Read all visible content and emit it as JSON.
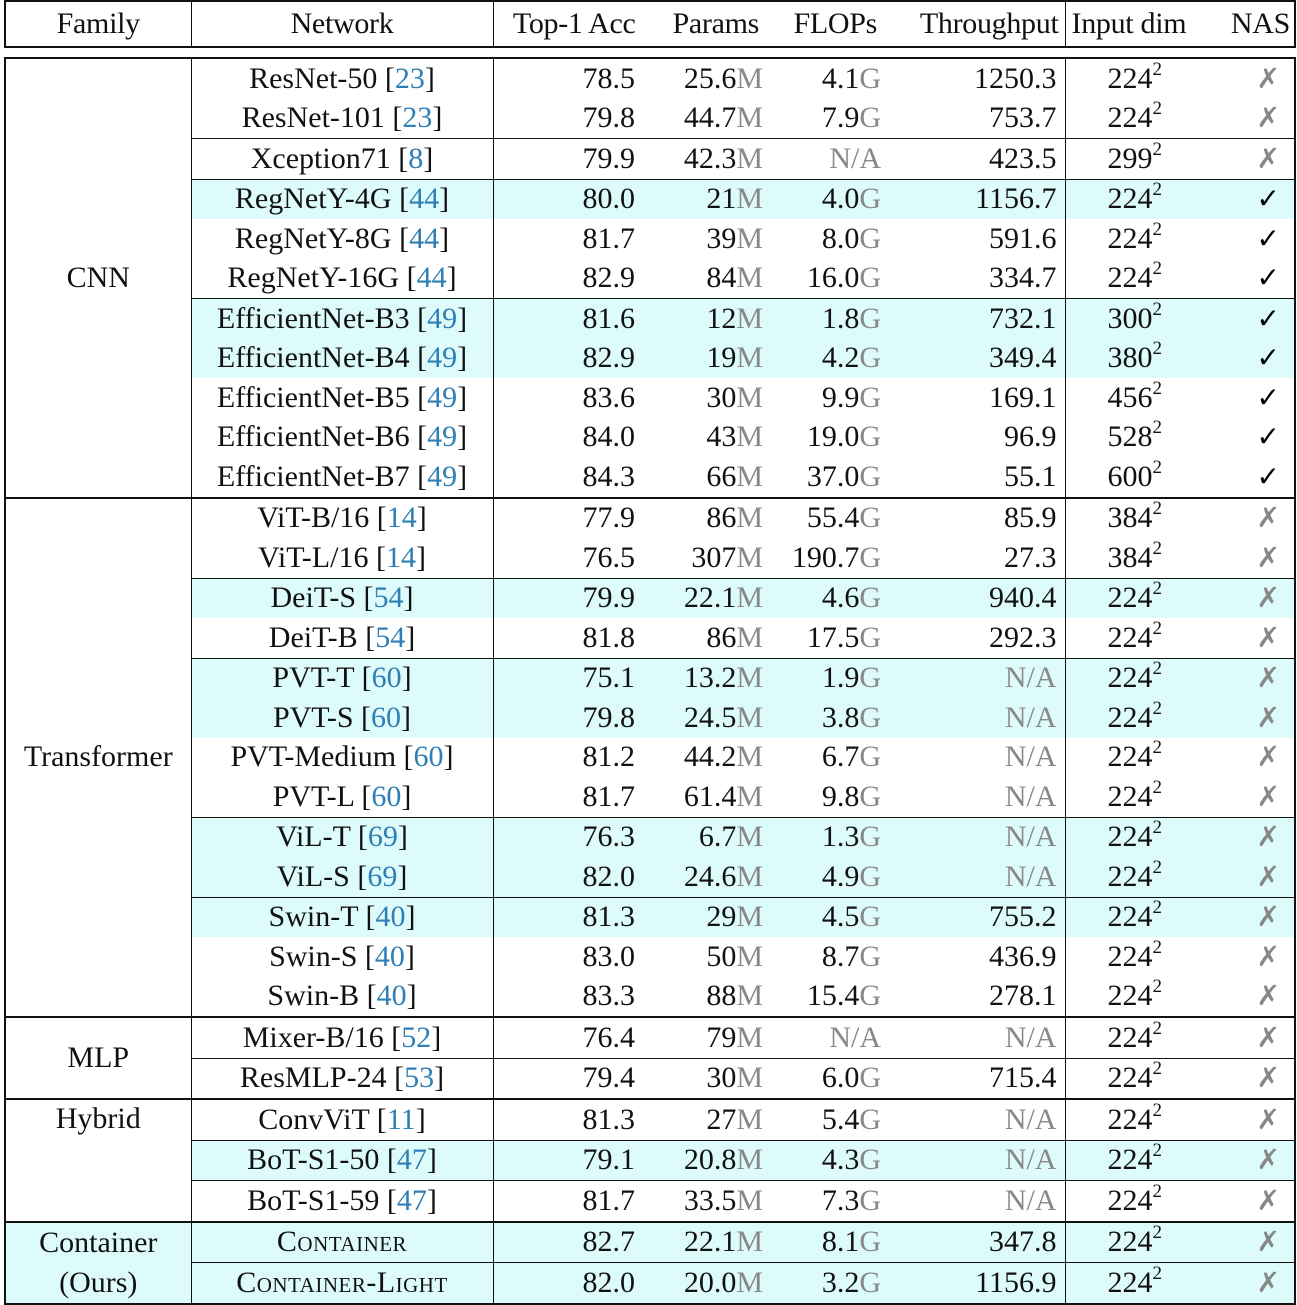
{
  "header": {
    "family": "Family",
    "network": "Network",
    "top1": "Top-1 Acc",
    "params": "Params",
    "flops": "FLOPs",
    "throughput": "Throughput",
    "input_dim": "Input dim",
    "nas": "NAS"
  },
  "colors": {
    "highlight": "#ddfbfb",
    "citation": "#2f7fb5",
    "unit": "#888888"
  },
  "icons": {
    "yes": "checkmark-icon",
    "no": "cross-icon"
  },
  "groups": [
    {
      "family": "CNN",
      "family_highlight": false,
      "rows": [
        {
          "name": "ResNet-50",
          "cite": "23",
          "acc": "78.5",
          "params": "25.6",
          "flops": "4.1",
          "thr": "1250.3",
          "dim": "224",
          "nas": false,
          "hl": false,
          "sep": false
        },
        {
          "name": "ResNet-101",
          "cite": "23",
          "acc": "79.8",
          "params": "44.7",
          "flops": "7.9",
          "thr": "753.7",
          "dim": "224",
          "nas": false,
          "hl": false,
          "sep": false
        },
        {
          "name": "Xception71",
          "cite": "8",
          "acc": "79.9",
          "params": "42.3",
          "flops": "N/A",
          "thr": "423.5",
          "dim": "299",
          "nas": false,
          "hl": false,
          "sep": true
        },
        {
          "name": "RegNetY-4G",
          "cite": "44",
          "acc": "80.0",
          "params": "21",
          "flops": "4.0",
          "thr": "1156.7",
          "dim": "224",
          "nas": true,
          "hl": true,
          "sep": true
        },
        {
          "name": "RegNetY-8G",
          "cite": "44",
          "acc": "81.7",
          "params": "39",
          "flops": "8.0",
          "thr": "591.6",
          "dim": "224",
          "nas": true,
          "hl": false,
          "sep": false
        },
        {
          "name": "RegNetY-16G",
          "cite": "44",
          "acc": "82.9",
          "params": "84",
          "flops": "16.0",
          "thr": "334.7",
          "dim": "224",
          "nas": true,
          "hl": false,
          "sep": false
        },
        {
          "name": "EfficientNet-B3",
          "cite": "49",
          "acc": "81.6",
          "params": "12",
          "flops": "1.8",
          "thr": "732.1",
          "dim": "300",
          "nas": true,
          "hl": true,
          "sep": true
        },
        {
          "name": "EfficientNet-B4",
          "cite": "49",
          "acc": "82.9",
          "params": "19",
          "flops": "4.2",
          "thr": "349.4",
          "dim": "380",
          "nas": true,
          "hl": true,
          "sep": false
        },
        {
          "name": "EfficientNet-B5",
          "cite": "49",
          "acc": "83.6",
          "params": "30",
          "flops": "9.9",
          "thr": "169.1",
          "dim": "456",
          "nas": true,
          "hl": false,
          "sep": false
        },
        {
          "name": "EfficientNet-B6",
          "cite": "49",
          "acc": "84.0",
          "params": "43",
          "flops": "19.0",
          "thr": "96.9",
          "dim": "528",
          "nas": true,
          "hl": false,
          "sep": false
        },
        {
          "name": "EfficientNet-B7",
          "cite": "49",
          "acc": "84.3",
          "params": "66",
          "flops": "37.0",
          "thr": "55.1",
          "dim": "600",
          "nas": true,
          "hl": false,
          "sep": false
        }
      ]
    },
    {
      "family": "Transformer",
      "family_highlight": false,
      "rows": [
        {
          "name": "ViT-B/16",
          "cite": "14",
          "acc": "77.9",
          "params": "86",
          "flops": "55.4",
          "thr": "85.9",
          "dim": "384",
          "nas": false,
          "hl": false,
          "sep": false
        },
        {
          "name": "ViT-L/16",
          "cite": "14",
          "acc": "76.5",
          "params": "307",
          "flops": "190.7",
          "thr": "27.3",
          "dim": "384",
          "nas": false,
          "hl": false,
          "sep": false
        },
        {
          "name": "DeiT-S",
          "cite": "54",
          "acc": "79.9",
          "params": "22.1",
          "flops": "4.6",
          "thr": "940.4",
          "dim": "224",
          "nas": false,
          "hl": true,
          "sep": true
        },
        {
          "name": "DeiT-B",
          "cite": "54",
          "acc": "81.8",
          "params": "86",
          "flops": "17.5",
          "thr": "292.3",
          "dim": "224",
          "nas": false,
          "hl": false,
          "sep": false
        },
        {
          "name": "PVT-T",
          "cite": "60",
          "acc": "75.1",
          "params": "13.2",
          "flops": "1.9",
          "thr": "N/A",
          "dim": "224",
          "nas": false,
          "hl": true,
          "sep": true
        },
        {
          "name": "PVT-S",
          "cite": "60",
          "acc": "79.8",
          "params": "24.5",
          "flops": "3.8",
          "thr": "N/A",
          "dim": "224",
          "nas": false,
          "hl": true,
          "sep": false
        },
        {
          "name": "PVT-Medium",
          "cite": "60",
          "acc": "81.2",
          "params": "44.2",
          "flops": "6.7",
          "thr": "N/A",
          "dim": "224",
          "nas": false,
          "hl": false,
          "sep": false
        },
        {
          "name": "PVT-L",
          "cite": "60",
          "acc": "81.7",
          "params": "61.4",
          "flops": "9.8",
          "thr": "N/A",
          "dim": "224",
          "nas": false,
          "hl": false,
          "sep": false
        },
        {
          "name": "ViL-T",
          "cite": "69",
          "acc": "76.3",
          "params": "6.7",
          "flops": "1.3",
          "thr": "N/A",
          "dim": "224",
          "nas": false,
          "hl": true,
          "sep": true
        },
        {
          "name": "ViL-S",
          "cite": "69",
          "acc": "82.0",
          "params": "24.6",
          "flops": "4.9",
          "thr": "N/A",
          "dim": "224",
          "nas": false,
          "hl": true,
          "sep": false
        },
        {
          "name": "Swin-T",
          "cite": "40",
          "acc": "81.3",
          "params": "29",
          "flops": "4.5",
          "thr": "755.2",
          "dim": "224",
          "nas": false,
          "hl": true,
          "sep": true
        },
        {
          "name": "Swin-S",
          "cite": "40",
          "acc": "83.0",
          "params": "50",
          "flops": "8.7",
          "thr": "436.9",
          "dim": "224",
          "nas": false,
          "hl": false,
          "sep": false
        },
        {
          "name": "Swin-B",
          "cite": "40",
          "acc": "83.3",
          "params": "88",
          "flops": "15.4",
          "thr": "278.1",
          "dim": "224",
          "nas": false,
          "hl": false,
          "sep": false
        }
      ]
    },
    {
      "family": "MLP",
      "family_highlight": false,
      "rows": [
        {
          "name": "Mixer-B/16",
          "cite": "52",
          "acc": "76.4",
          "params": "79",
          "flops": "N/A",
          "thr": "N/A",
          "dim": "224",
          "nas": false,
          "hl": false,
          "sep": false
        },
        {
          "name": "ResMLP-24",
          "cite": "53",
          "acc": "79.4",
          "params": "30",
          "flops": "6.0",
          "thr": "715.4",
          "dim": "224",
          "nas": false,
          "hl": false,
          "sep": true
        }
      ]
    },
    {
      "family": "Hybrid",
      "family_highlight": false,
      "rows": [
        {
          "name": "ConvViT",
          "cite": "11",
          "acc": "81.3",
          "params": "27",
          "flops": "5.4",
          "thr": "N/A",
          "dim": "224",
          "nas": false,
          "hl": false,
          "sep": false
        },
        {
          "name": "BoT-S1-50",
          "cite": "47",
          "acc": "79.1",
          "params": "20.8",
          "flops": "4.3",
          "thr": "N/A",
          "dim": "224",
          "nas": false,
          "hl": true,
          "sep": true
        },
        {
          "name": "BoT-S1-59",
          "cite": "47",
          "acc": "81.7",
          "params": "33.5",
          "flops": "7.3",
          "thr": "N/A",
          "dim": "224",
          "nas": false,
          "hl": false,
          "sep": true
        }
      ]
    },
    {
      "family": "Container (Ours)",
      "family_lines": [
        "Container",
        "(Ours)"
      ],
      "family_highlight": true,
      "rows": [
        {
          "name": "Container",
          "cite": "",
          "acc": "82.7",
          "params": "22.1",
          "flops": "8.1",
          "thr": "347.8",
          "dim": "224",
          "nas": false,
          "hl": true,
          "sep": false,
          "smallcaps": true
        },
        {
          "name": "Container-Light",
          "cite": "",
          "acc": "82.0",
          "params": "20.0",
          "flops": "3.2",
          "thr": "1156.9",
          "dim": "224",
          "nas": false,
          "hl": true,
          "sep": true,
          "smallcaps": true
        }
      ]
    }
  ],
  "units": {
    "params": "M",
    "flops": "G",
    "na": "N/A",
    "sup": "2"
  }
}
